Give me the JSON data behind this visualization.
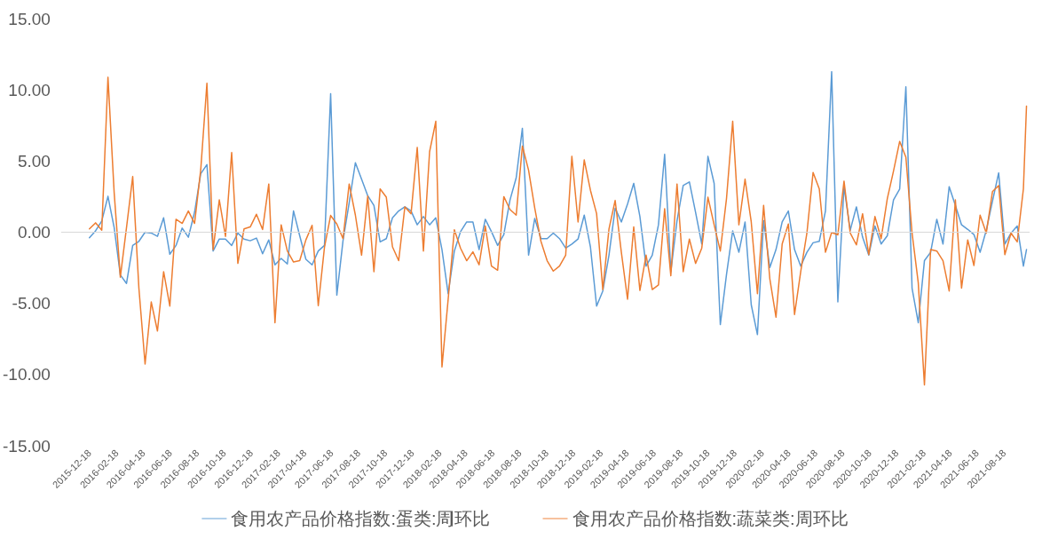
{
  "chart_data": {
    "type": "line",
    "x": [
      "2015-12-18",
      "2016-01-01",
      "2016-01-15",
      "2016-01-29",
      "2016-02-12",
      "2016-02-26",
      "2016-03-11",
      "2016-03-25",
      "2016-04-08",
      "2016-04-22",
      "2016-05-06",
      "2016-05-20",
      "2016-06-03",
      "2016-06-17",
      "2016-07-01",
      "2016-07-15",
      "2016-07-29",
      "2016-08-12",
      "2016-08-26",
      "2016-09-09",
      "2016-09-23",
      "2016-10-07",
      "2016-10-21",
      "2016-11-04",
      "2016-11-18",
      "2016-12-02",
      "2016-12-16",
      "2016-12-30",
      "2017-01-13",
      "2017-01-27",
      "2017-02-10",
      "2017-02-24",
      "2017-03-10",
      "2017-03-24",
      "2017-04-07",
      "2017-04-21",
      "2017-05-05",
      "2017-05-19",
      "2017-06-02",
      "2017-06-16",
      "2017-06-30",
      "2017-07-14",
      "2017-07-28",
      "2017-08-11",
      "2017-08-25",
      "2017-09-08",
      "2017-09-22",
      "2017-10-06",
      "2017-10-20",
      "2017-11-03",
      "2017-11-17",
      "2017-12-01",
      "2017-12-15",
      "2017-12-29",
      "2018-01-12",
      "2018-01-26",
      "2018-02-09",
      "2018-02-23",
      "2018-03-09",
      "2018-03-23",
      "2018-04-06",
      "2018-04-20",
      "2018-05-04",
      "2018-05-18",
      "2018-06-01",
      "2018-06-15",
      "2018-06-29",
      "2018-07-13",
      "2018-07-27",
      "2018-08-10",
      "2018-08-24",
      "2018-09-07",
      "2018-09-21",
      "2018-10-05",
      "2018-10-19",
      "2018-11-02",
      "2018-11-16",
      "2018-11-30",
      "2018-12-14",
      "2018-12-28",
      "2019-01-11",
      "2019-01-25",
      "2019-02-08",
      "2019-02-22",
      "2019-03-08",
      "2019-03-22",
      "2019-04-05",
      "2019-04-19",
      "2019-05-03",
      "2019-05-17",
      "2019-05-31",
      "2019-06-14",
      "2019-06-28",
      "2019-07-12",
      "2019-07-26",
      "2019-08-09",
      "2019-08-23",
      "2019-09-06",
      "2019-09-20",
      "2019-10-04",
      "2019-10-18",
      "2019-11-01",
      "2019-11-15",
      "2019-11-29",
      "2019-12-13",
      "2019-12-27",
      "2020-01-10",
      "2020-01-24",
      "2020-02-07",
      "2020-02-21",
      "2020-03-06",
      "2020-03-20",
      "2020-04-03",
      "2020-04-17",
      "2020-05-01",
      "2020-05-15",
      "2020-05-29",
      "2020-06-12",
      "2020-06-26",
      "2020-07-10",
      "2020-07-24",
      "2020-08-07",
      "2020-08-21",
      "2020-09-04",
      "2020-09-18",
      "2020-10-02",
      "2020-10-16",
      "2020-10-30",
      "2020-11-13",
      "2020-11-27",
      "2020-12-11",
      "2020-12-25",
      "2021-01-08",
      "2021-01-22",
      "2021-02-05",
      "2021-02-19",
      "2021-03-05",
      "2021-03-19",
      "2021-04-02",
      "2021-04-16",
      "2021-04-30",
      "2021-05-14",
      "2021-05-28",
      "2021-06-11",
      "2021-06-25",
      "2021-07-09",
      "2021-07-23",
      "2021-08-06",
      "2021-08-20",
      "2021-09-03",
      "2021-09-17",
      "2021-10-01",
      "2021-10-08"
    ],
    "series": [
      {
        "name": "食用农产品价格指数:蛋类:周环比",
        "color": "#5b9bd5",
        "values": [
          -0.39,
          0.1,
          0.79,
          2.52,
          0.33,
          -3.0,
          -3.6,
          -0.93,
          -0.64,
          0,
          -0.06,
          -0.29,
          1.01,
          -1.55,
          -0.93,
          0.29,
          -0.35,
          1.4,
          4.11,
          4.75,
          -1.32,
          -0.48,
          -0.48,
          -0.93,
          -0.06,
          -0.48,
          -0.6,
          -0.41,
          -1.51,
          -0.54,
          -2.29,
          -1.84,
          -2.23,
          1.49,
          -0.25,
          -1.9,
          -2.29,
          -1.32,
          -0.93,
          9.73,
          -4.42,
          -0.6,
          2.07,
          4.88,
          3.72,
          2.56,
          1.88,
          -0.68,
          -0.45,
          1.01,
          1.49,
          1.78,
          1.49,
          0.52,
          1.1,
          0.52,
          1.01,
          -1.22,
          -4.32,
          -1.32,
          0.04,
          0.72,
          0.72,
          -1.22,
          0.91,
          0.04,
          -0.93,
          -0.16,
          2.27,
          3.82,
          7.3,
          -1.61,
          0.97,
          -0.45,
          -0.45,
          -0.06,
          -0.45,
          -1.12,
          -0.83,
          -0.48,
          1.2,
          -1.03,
          -5.19,
          -4.13,
          -1.61,
          1.69,
          0.72,
          1.98,
          3.43,
          1.1,
          -2.38,
          -1.61,
          0.52,
          5.47,
          -2.77,
          0.81,
          3.28,
          3.53,
          1.4,
          -0.83,
          5.33,
          3.43,
          -6.49,
          -2.97,
          0.1,
          -1.41,
          0.72,
          -5.1,
          -7.19,
          0.81,
          -2.48,
          -1.22,
          0.72,
          1.49,
          -1.22,
          -2.38,
          -1.41,
          -0.74,
          -0.64,
          1.49,
          11.28,
          -4.9,
          3.2,
          0.14,
          1.78,
          -0.35,
          -1.61,
          0.43,
          -0.83,
          -0.25,
          2.27,
          3.04,
          10.21,
          -3.93,
          -6.36,
          -2.0,
          -1.41,
          0.91,
          -0.83,
          3.2,
          1.88,
          0.52,
          0.2,
          -0.16,
          -1.41,
          0.14,
          2.17,
          4.17,
          -0.83,
          -0.06,
          0.43,
          -2.38,
          -1.22
        ]
      },
      {
        "name": "食用农产品价格指数:蔬菜类:周环比",
        "color": "#ed7d31",
        "values": [
          0.23,
          0.66,
          0.14,
          10.89,
          2.8,
          -3.16,
          0.33,
          3.91,
          -3.93,
          -9.26,
          -4.9,
          -6.94,
          -2.77,
          -5.19,
          0.91,
          0.62,
          1.49,
          0.62,
          4.4,
          10.47,
          -1.22,
          2.27,
          -0.29,
          5.6,
          -2.19,
          0.23,
          0.37,
          1.26,
          0.19,
          3.39,
          -6.36,
          0.52,
          -1.32,
          -2.09,
          -2.0,
          -0.54,
          0.48,
          -5.16,
          -1.07,
          1.18,
          0.58,
          -0.45,
          3.39,
          1.2,
          -1.61,
          2.54,
          -2.77,
          3.04,
          2.46,
          -1.03,
          -2.0,
          1.78,
          1.3,
          5.95,
          -1.32,
          5.66,
          7.79,
          -9.46,
          -4.71,
          0.17,
          -1.12,
          -2.0,
          -1.38,
          -2.29,
          0.43,
          -2.38,
          -2.67,
          2.5,
          1.59,
          1.2,
          6.05,
          4.36,
          1.69,
          -0.64,
          -2.0,
          -2.73,
          -2.38,
          -1.61,
          5.33,
          0.72,
          5.08,
          2.95,
          1.3,
          -4.03,
          0.23,
          2.23,
          -1.41,
          -4.71,
          0.37,
          -4.09,
          -1.61,
          -4.03,
          -3.7,
          1.65,
          -3.06,
          3.39,
          -2.77,
          -0.48,
          -2.19,
          -1.12,
          2.46,
          0.52,
          -1.32,
          2.36,
          7.79,
          0.52,
          3.72,
          0.72,
          -4.32,
          1.88,
          -3.26,
          -5.97,
          -0.83,
          0.58,
          -5.78,
          -2.77,
          -0.06,
          4.2,
          3.04,
          -1.41,
          -0.02,
          -0.19,
          3.59,
          -0.06,
          -0.89,
          1.3,
          -1.57,
          1.1,
          -0.45,
          2.36,
          4.3,
          6.38,
          5.27,
          -0.06,
          -3.55,
          -10.72,
          -1.22,
          -1.32,
          -2.0,
          -4.13,
          2.27,
          -3.93,
          -0.54,
          -2.34,
          1.2,
          -0.06,
          2.85,
          3.28,
          -1.57,
          -0.06,
          -0.68,
          3.04,
          8.86
        ]
      }
    ],
    "xlim": [
      "2015-10-15",
      "2021-10-15"
    ],
    "xticks": [
      "2015-12-18",
      "2016-02-18",
      "2016-04-18",
      "2016-06-18",
      "2016-08-18",
      "2016-10-18",
      "2016-12-18",
      "2017-02-18",
      "2017-04-18",
      "2017-06-18",
      "2017-08-18",
      "2017-10-18",
      "2017-12-18",
      "2018-02-18",
      "2018-04-18",
      "2018-06-18",
      "2018-08-18",
      "2018-10-18",
      "2018-12-18",
      "2019-02-18",
      "2019-04-18",
      "2019-06-18",
      "2019-08-18",
      "2019-10-18",
      "2019-12-18",
      "2020-02-18",
      "2020-04-18",
      "2020-06-18",
      "2020-08-18",
      "2020-10-18",
      "2020-12-18",
      "2021-02-18",
      "2021-04-18",
      "2021-06-18",
      "2021-08-18"
    ],
    "ylim": [
      -15,
      15
    ],
    "yticks": [
      {
        "value": -15,
        "label": "-15.00"
      },
      {
        "value": -10,
        "label": "-10.00"
      },
      {
        "value": -5,
        "label": "-5.00"
      },
      {
        "value": 0,
        "label": "0.00"
      },
      {
        "value": 5,
        "label": "5.00"
      },
      {
        "value": 10,
        "label": "10.00"
      },
      {
        "value": 15,
        "label": "15.00"
      }
    ],
    "ref_lines": [
      {
        "axis": "y",
        "value": 0,
        "color": "#d9d9d9"
      }
    ],
    "legend": "bottom",
    "marker": "none",
    "line_style": "solid",
    "grid": false
  }
}
